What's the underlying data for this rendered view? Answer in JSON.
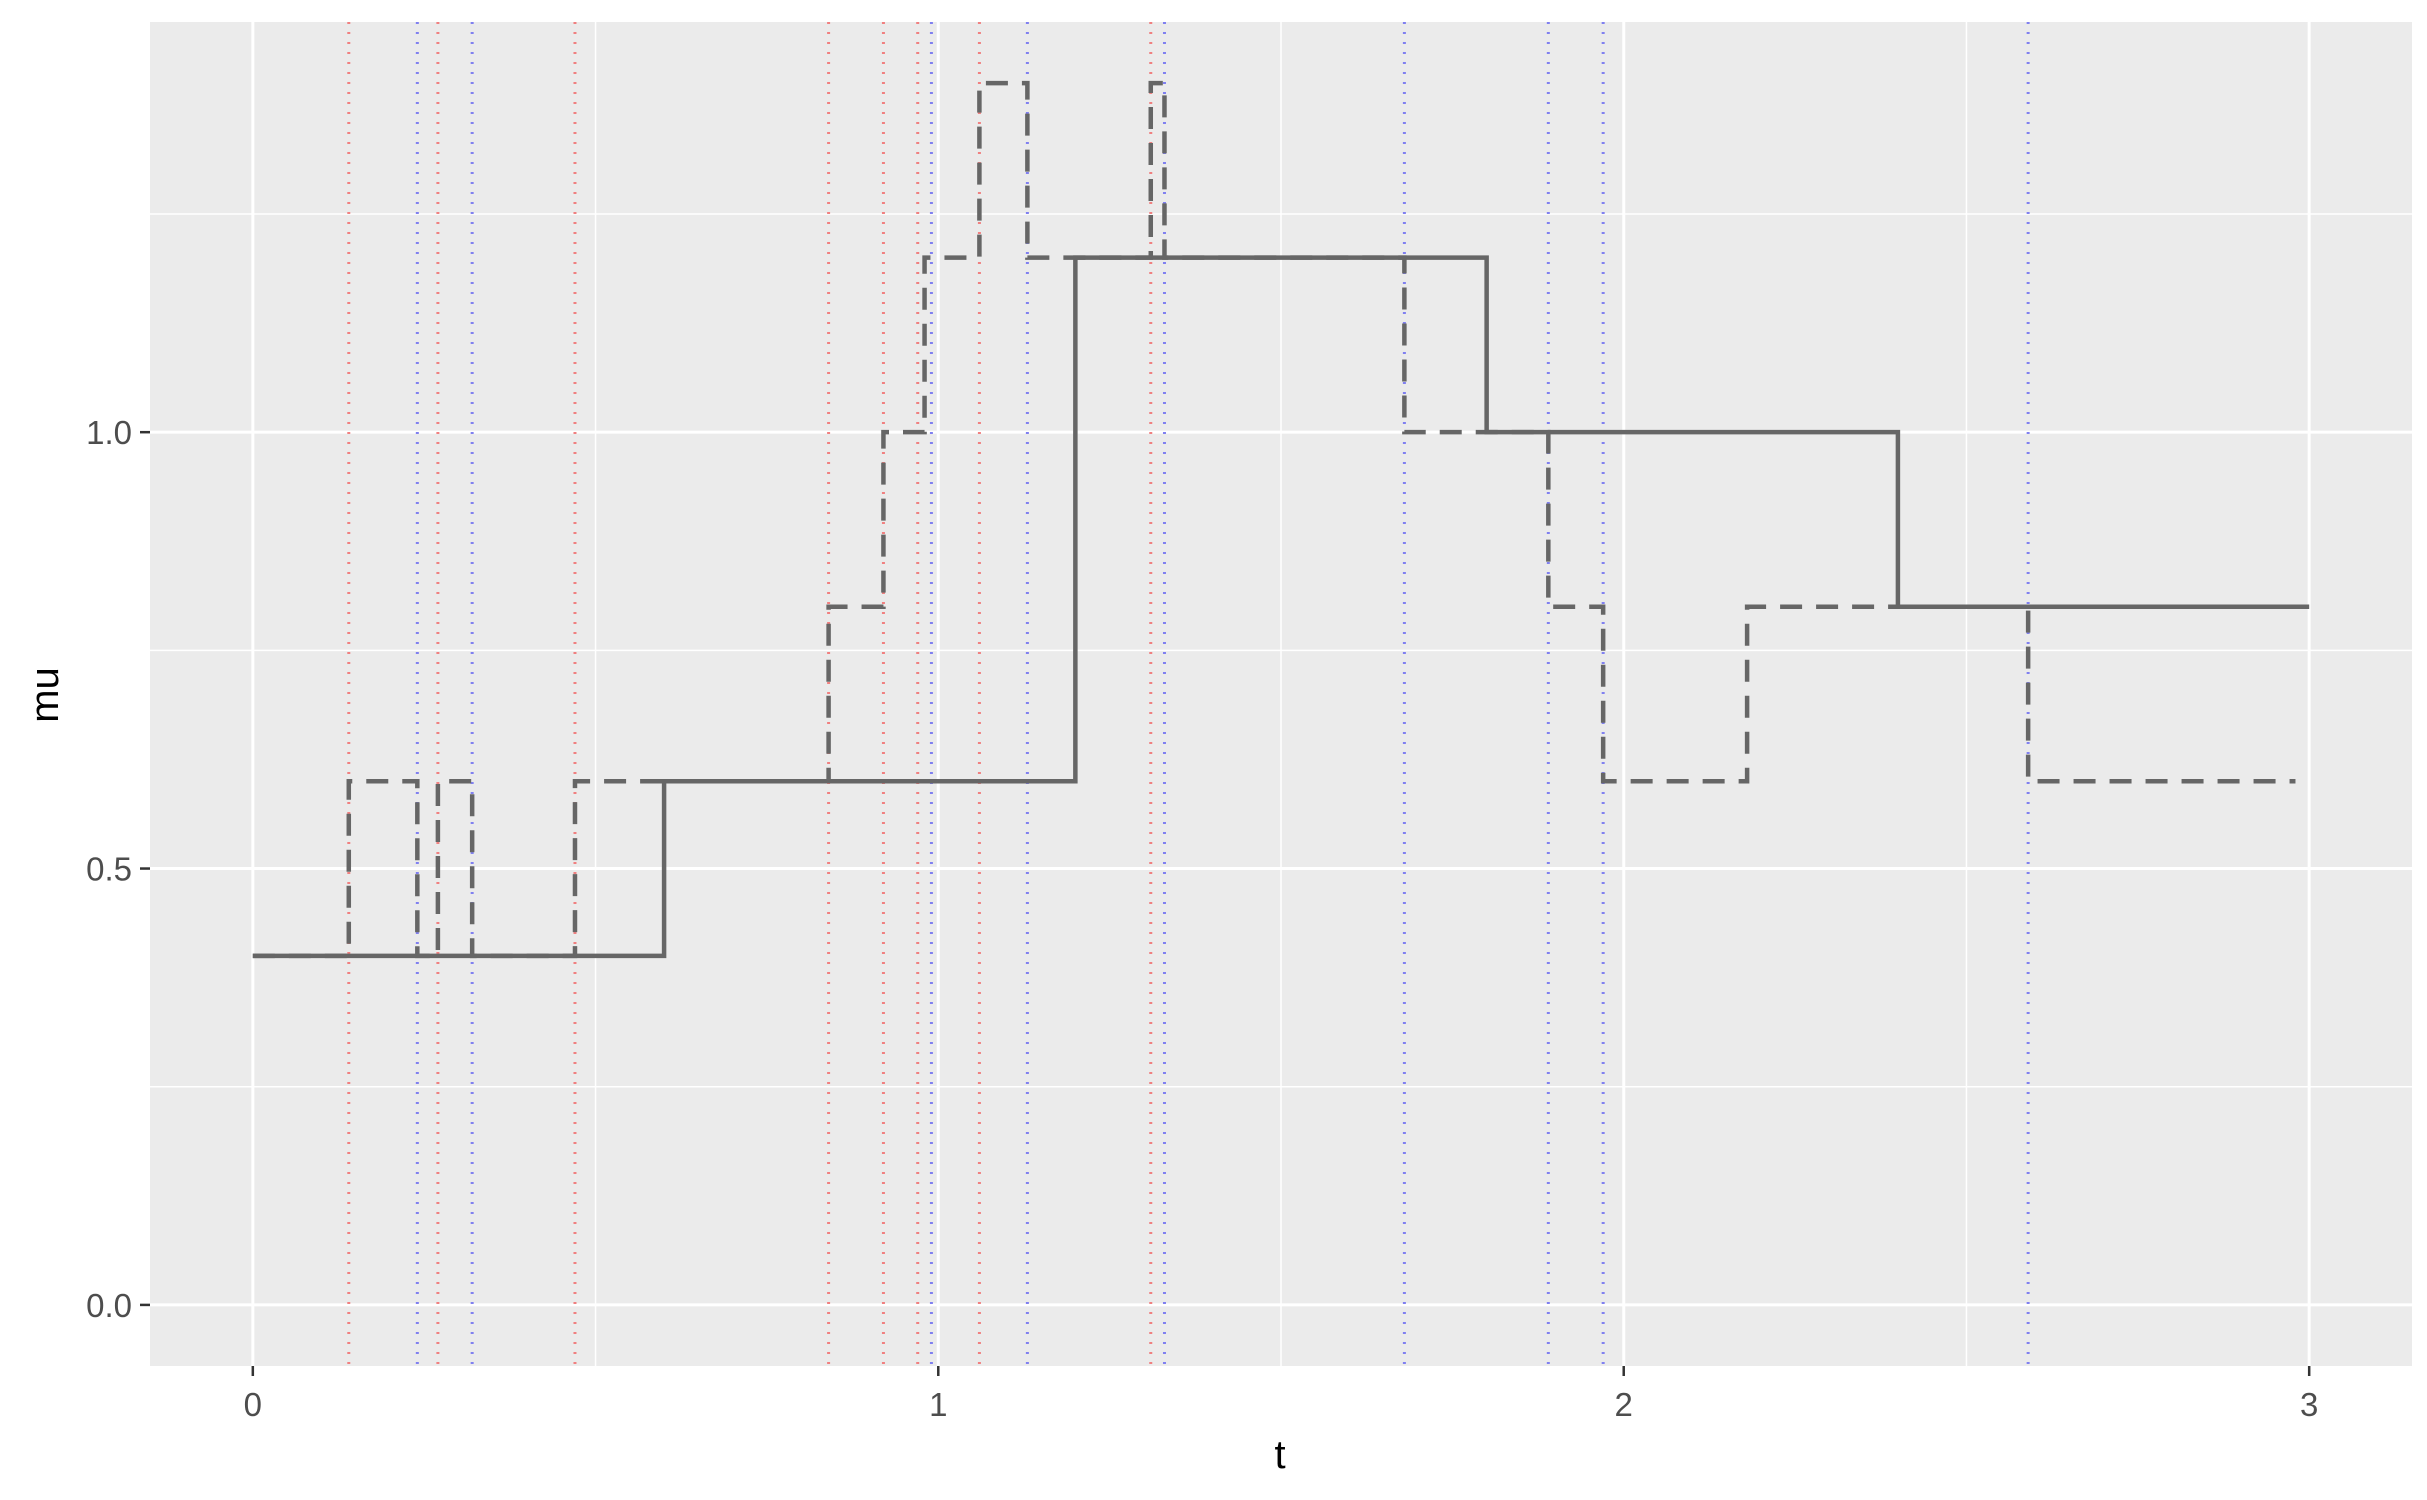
{
  "chart_data": {
    "type": "line",
    "xlabel": "t",
    "ylabel": "mu",
    "xlim": [
      -0.15,
      3.15
    ],
    "ylim": [
      -0.07,
      1.47
    ],
    "x_ticks": [
      0,
      1,
      2,
      3
    ],
    "x_tick_labels": [
      "0",
      "1",
      "2",
      "3"
    ],
    "y_ticks": [
      0.0,
      0.5,
      1.0
    ],
    "y_tick_labels": [
      "0.0",
      "0.5",
      "1.0"
    ],
    "x_minor": [
      0.5,
      1.5,
      2.5
    ],
    "y_minor": [
      0.25,
      0.75,
      1.25
    ],
    "grid": true,
    "legend": "none",
    "series": [
      {
        "style": "solid",
        "color": "#666666",
        "steps": [
          [
            0,
            0.4
          ],
          [
            0.6,
            0.6
          ],
          [
            1.2,
            1.2
          ],
          [
            1.8,
            1.0
          ],
          [
            2.4,
            0.8
          ],
          [
            3.0,
            0.8
          ]
        ]
      },
      {
        "style": "dashed",
        "color": "#666666",
        "steps": [
          [
            0,
            0.4
          ],
          [
            0.14,
            0.6
          ],
          [
            0.24,
            0.4
          ],
          [
            0.27,
            0.6
          ],
          [
            0.32,
            0.4
          ],
          [
            0.47,
            0.6
          ],
          [
            0.84,
            0.8
          ],
          [
            0.92,
            1.0
          ],
          [
            0.98,
            1.2
          ],
          [
            1.06,
            1.4
          ],
          [
            1.13,
            1.2
          ],
          [
            1.31,
            1.4
          ],
          [
            1.33,
            1.2
          ],
          [
            1.68,
            1.0
          ],
          [
            1.89,
            0.8
          ],
          [
            1.97,
            0.6
          ],
          [
            2.18,
            0.8
          ],
          [
            2.59,
            0.6
          ],
          [
            2.98,
            0.6
          ]
        ]
      }
    ],
    "vlines_red": [
      0.14,
      0.27,
      0.47,
      0.84,
      0.92,
      0.97,
      1.06,
      1.31
    ],
    "vlines_blue": [
      0.24,
      0.32,
      0.99,
      1.13,
      1.33,
      1.68,
      1.89,
      1.97,
      2.59
    ],
    "vline_colors": {
      "red": "#f08080",
      "blue": "#8080f0"
    },
    "panel_color": "#ebebeb",
    "grid_color": "#ffffff"
  }
}
